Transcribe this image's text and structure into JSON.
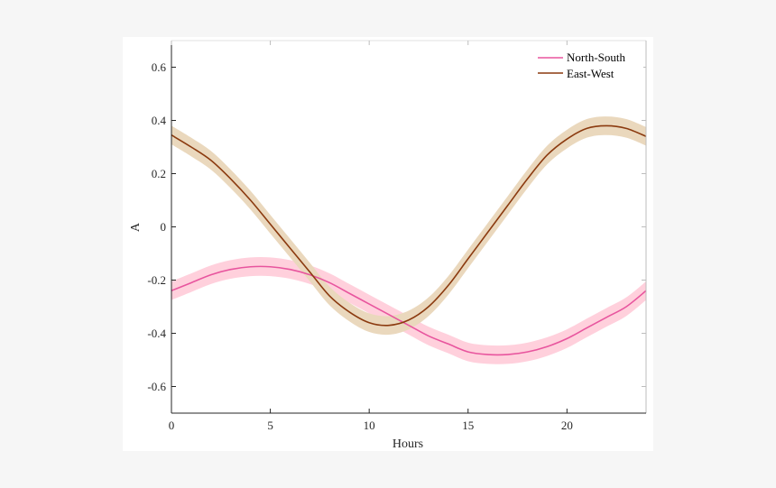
{
  "chart_data": {
    "type": "line",
    "xlabel": "Hours",
    "ylabel": "A",
    "xlim": [
      0,
      24
    ],
    "ylim": [
      -0.7,
      0.7
    ],
    "xticks": [
      0,
      5,
      10,
      15,
      20
    ],
    "yticks": [
      -0.6,
      -0.4,
      -0.2,
      0,
      0.2,
      0.4,
      0.6
    ],
    "xtick_labels": [
      "0",
      "5",
      "10",
      "15",
      "20"
    ],
    "ytick_labels": [
      "-0.6",
      "-0.4",
      "-0.2",
      "0",
      "0.2",
      "0.4",
      "0.6"
    ],
    "grid": false,
    "legend": "top-right",
    "x": [
      0,
      1,
      2,
      3,
      4,
      5,
      6,
      7,
      8,
      9,
      10,
      11,
      12,
      13,
      14,
      15,
      16,
      17,
      18,
      19,
      20,
      21,
      22,
      23,
      24
    ],
    "series": [
      {
        "name": "North-South",
        "color": "#e8559e",
        "band_color": "#ffd0dc",
        "values": [
          -0.24,
          -0.21,
          -0.18,
          -0.16,
          -0.15,
          -0.15,
          -0.16,
          -0.18,
          -0.21,
          -0.25,
          -0.29,
          -0.33,
          -0.37,
          -0.41,
          -0.44,
          -0.47,
          -0.48,
          -0.48,
          -0.47,
          -0.45,
          -0.42,
          -0.38,
          -0.34,
          -0.3,
          -0.24
        ],
        "band_halfwidth": [
          0.035,
          0.035,
          0.035,
          0.035,
          0.035,
          0.035,
          0.035,
          0.035,
          0.035,
          0.035,
          0.035,
          0.035,
          0.035,
          0.035,
          0.035,
          0.035,
          0.035,
          0.035,
          0.035,
          0.035,
          0.035,
          0.035,
          0.035,
          0.035,
          0.035
        ]
      },
      {
        "name": "East-West",
        "color": "#8b3a0f",
        "band_color": "#ead8bd",
        "values": [
          0.345,
          0.3,
          0.25,
          0.18,
          0.1,
          0.01,
          -0.08,
          -0.17,
          -0.26,
          -0.32,
          -0.36,
          -0.37,
          -0.35,
          -0.3,
          -0.22,
          -0.12,
          -0.02,
          0.08,
          0.18,
          0.27,
          0.33,
          0.37,
          0.38,
          0.37,
          0.34
        ],
        "band_halfwidth": [
          0.035,
          0.035,
          0.035,
          0.035,
          0.035,
          0.035,
          0.035,
          0.035,
          0.035,
          0.035,
          0.035,
          0.035,
          0.035,
          0.035,
          0.035,
          0.035,
          0.035,
          0.035,
          0.035,
          0.035,
          0.035,
          0.035,
          0.035,
          0.035,
          0.035
        ]
      }
    ]
  }
}
